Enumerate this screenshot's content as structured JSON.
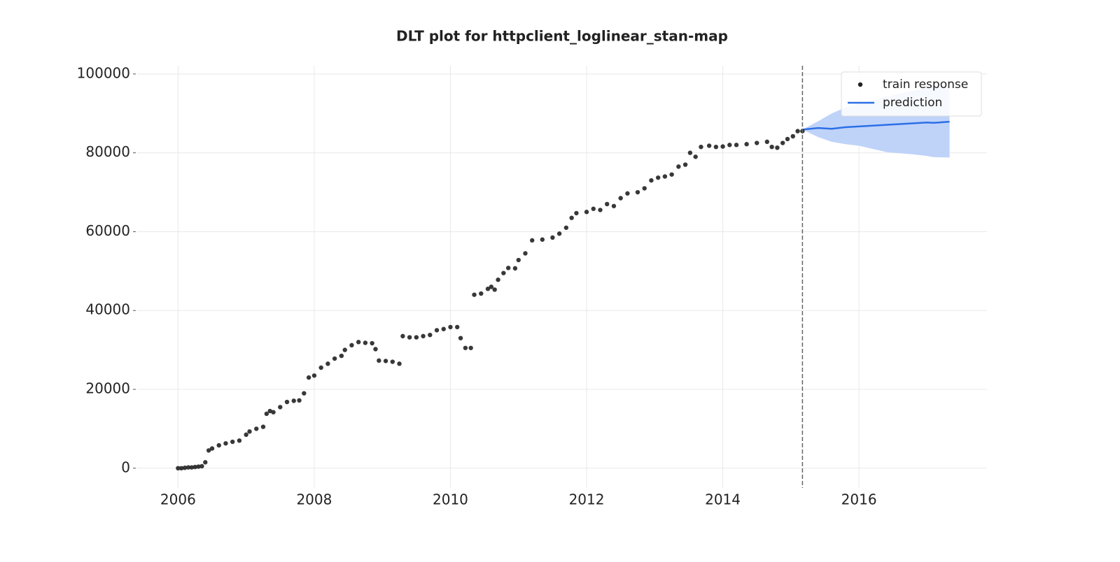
{
  "chart_data": {
    "type": "scatter",
    "title": "DLT plot for httpclient_loglinear_stan-map",
    "xlim": [
      2005.4,
      2017.88
    ],
    "ylim": [
      -5000,
      102100
    ],
    "xticks": [
      2006,
      2008,
      2010,
      2012,
      2014,
      2016
    ],
    "yticks": [
      0,
      20000,
      40000,
      60000,
      80000,
      100000
    ],
    "grid": true,
    "vline": 2015.17,
    "legend": "upper right",
    "series": [
      {
        "name": "train response",
        "type": "scatter",
        "color": "#222222",
        "x": [
          2006.0,
          2006.05,
          2006.1,
          2006.15,
          2006.2,
          2006.25,
          2006.3,
          2006.35,
          2006.4,
          2006.45,
          2006.5,
          2006.6,
          2006.7,
          2006.8,
          2006.9,
          2007.0,
          2007.05,
          2007.15,
          2007.25,
          2007.3,
          2007.35,
          2007.4,
          2007.5,
          2007.6,
          2007.7,
          2007.78,
          2007.85,
          2007.92,
          2008.0,
          2008.1,
          2008.2,
          2008.3,
          2008.4,
          2008.45,
          2008.55,
          2008.65,
          2008.75,
          2008.85,
          2008.9,
          2008.95,
          2009.05,
          2009.15,
          2009.25,
          2009.3,
          2009.4,
          2009.5,
          2009.6,
          2009.7,
          2009.8,
          2009.9,
          2010.0,
          2010.1,
          2010.15,
          2010.22,
          2010.3,
          2010.35,
          2010.45,
          2010.55,
          2010.6,
          2010.65,
          2010.7,
          2010.78,
          2010.85,
          2010.95,
          2011.0,
          2011.1,
          2011.2,
          2011.35,
          2011.5,
          2011.6,
          2011.7,
          2011.78,
          2011.85,
          2012.0,
          2012.1,
          2012.2,
          2012.3,
          2012.4,
          2012.5,
          2012.6,
          2012.75,
          2012.85,
          2012.95,
          2013.05,
          2013.15,
          2013.25,
          2013.35,
          2013.45,
          2013.52,
          2013.6,
          2013.68,
          2013.8,
          2013.9,
          2014.0,
          2014.1,
          2014.2,
          2014.35,
          2014.5,
          2014.65,
          2014.72,
          2014.8,
          2014.88,
          2014.95,
          2015.03,
          2015.1,
          2015.17
        ],
        "values": [
          0,
          0,
          100,
          200,
          200,
          300,
          400,
          500,
          1500,
          4500,
          5000,
          5800,
          6300,
          6700,
          7000,
          8500,
          9300,
          10000,
          10500,
          13800,
          14500,
          14200,
          15500,
          16800,
          17100,
          17200,
          19000,
          23000,
          23500,
          25500,
          26500,
          27800,
          28500,
          30000,
          31200,
          32000,
          31800,
          31700,
          30200,
          27300,
          27200,
          27000,
          26500,
          33500,
          33200,
          33200,
          33500,
          33800,
          35000,
          35300,
          35800,
          35800,
          33000,
          30500,
          30500,
          44000,
          44300,
          45500,
          46000,
          45300,
          47800,
          49500,
          50800,
          50700,
          52800,
          54500,
          57800,
          58000,
          58500,
          59500,
          61000,
          63500,
          64700,
          65000,
          65800,
          65500,
          67000,
          66500,
          68500,
          69700,
          70000,
          71000,
          73000,
          73700,
          74000,
          74500,
          76500,
          77000,
          80000,
          79000,
          81500,
          81800,
          81500,
          81600,
          82000,
          82000,
          82200,
          82500,
          82800,
          81500,
          81300,
          82500,
          83500,
          84200,
          85500,
          85500
        ]
      },
      {
        "name": "prediction",
        "type": "line",
        "color": "#2c6fe6",
        "band_color": "#bfd3f9",
        "x": [
          2015.17,
          2015.4,
          2015.6,
          2015.8,
          2016.0,
          2016.2,
          2016.4,
          2016.6,
          2016.8,
          2017.0,
          2017.1,
          2017.33
        ],
        "values": [
          85900,
          86300,
          86100,
          86500,
          86700,
          86900,
          87100,
          87300,
          87500,
          87700,
          87600,
          87900
        ],
        "lower": [
          85900,
          84000,
          82800,
          82200,
          81800,
          81000,
          80200,
          79900,
          79600,
          79200,
          78900,
          78800
        ],
        "upper": [
          85900,
          88000,
          90000,
          91500,
          92500,
          93300,
          94300,
          95000,
          95800,
          96500,
          96800,
          97000
        ]
      }
    ]
  }
}
